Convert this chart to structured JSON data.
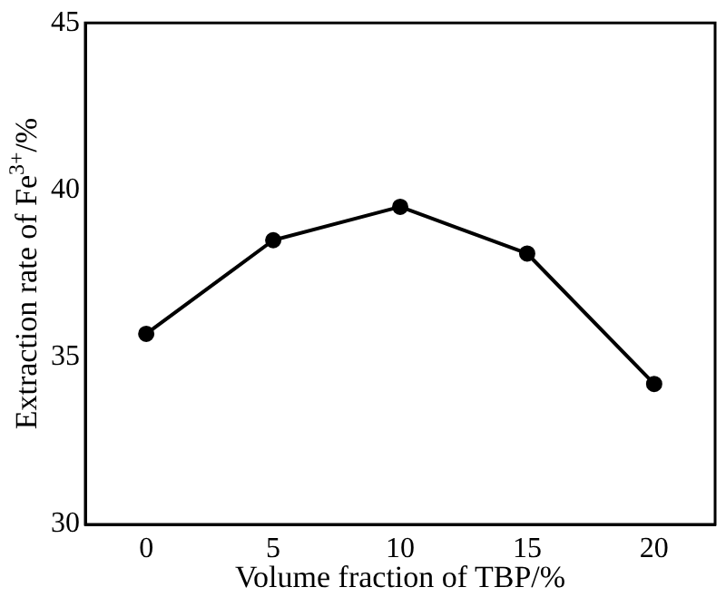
{
  "chart_data": {
    "type": "line",
    "xlabel": "Volume fraction of TBP/%",
    "ylabel": "Extraction rate of Fe$^{3+}$/%",
    "x": [
      0,
      5,
      10,
      15,
      20
    ],
    "series": [
      {
        "color": "#000000",
        "values": [
          35.7,
          38.5,
          39.5,
          38.1,
          34.2
        ]
      }
    ],
    "xlim": [
      -2.4,
      22.4
    ],
    "xticks": [
      0,
      5,
      10,
      15,
      20
    ],
    "ylim": [
      30,
      45
    ],
    "yticks": [
      30,
      35,
      40,
      45
    ],
    "marker": "circle",
    "line_style": "solid",
    "grid": false,
    "legend": false
  }
}
